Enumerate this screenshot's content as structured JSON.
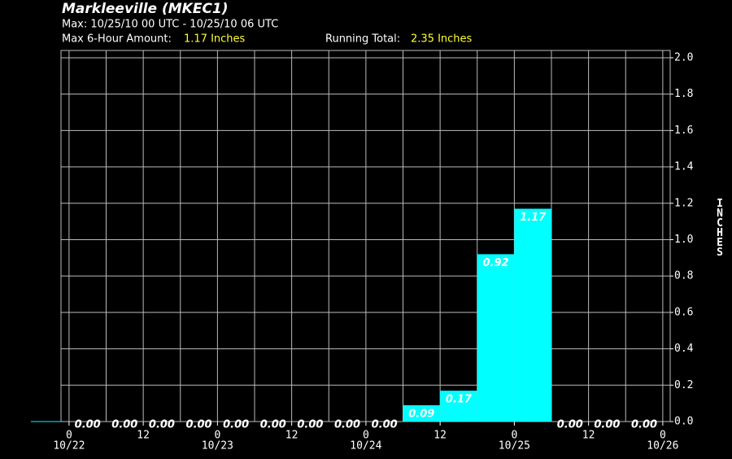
{
  "chart_data": {
    "type": "histogram",
    "title": "Markleeville (MKEC1)",
    "subtitle": "Max: 10/25/10 00 UTC - 10/25/10 06 UTC",
    "max_amount_label": "Max 6-Hour Amount:",
    "max_amount_value": "1.17 Inches",
    "running_total_label": "Running Total:",
    "running_total_value": "2.35 Inches",
    "ylabel": "INCHES",
    "color": "#00ffff",
    "bins": [
      0,
      6,
      12,
      18,
      24,
      30,
      36,
      42,
      48,
      54,
      60,
      66,
      72,
      78,
      84,
      90,
      96
    ],
    "values": [
      0,
      0,
      0,
      0,
      0,
      0,
      0,
      0,
      0,
      0.09,
      0.17,
      0.92,
      1.17,
      0,
      0,
      0
    ],
    "value_labels": [
      "0.00",
      "0.00",
      "0.00",
      "0.00",
      "0.00",
      "0.00",
      "0.00",
      "0.00",
      "0.00",
      "0.09",
      "0.17",
      "0.92",
      "1.17",
      "0.00",
      "0.00",
      "0.00"
    ],
    "xlim": [
      -1.3,
      97.2
    ],
    "xticks": [
      0,
      12,
      {
        "value": 24,
        "label": "0"
      },
      {
        "value": 36,
        "label": "12"
      },
      {
        "value": 48,
        "label": "0"
      },
      {
        "value": 60,
        "label": "12"
      },
      {
        "value": 72,
        "label": "0"
      },
      {
        "value": 84,
        "label": "12"
      },
      {
        "value": 96,
        "label": "0"
      }
    ],
    "xtick_dates": [
      {
        "value": 0,
        "label": "10/22"
      },
      {
        "value": 24,
        "label": "10/23"
      },
      {
        "value": 48,
        "label": "10/24"
      },
      {
        "value": 72,
        "label": "10/25"
      },
      {
        "value": 96,
        "label": "10/26"
      }
    ],
    "ylim": [
      0,
      2.04
    ],
    "yticks": [
      {
        "value": 0,
        "label": "0.0"
      },
      {
        "value": 0.2,
        "label": "0.2"
      },
      {
        "value": 0.4,
        "label": "0.4"
      },
      {
        "value": 0.6,
        "label": "0.6"
      },
      {
        "value": 0.8,
        "label": "0.8"
      },
      {
        "value": 1,
        "label": "1.0"
      },
      {
        "value": 1.2,
        "label": "1.2"
      },
      {
        "value": 1.4,
        "label": "1.4"
      },
      {
        "value": 1.6,
        "label": "1.6"
      },
      {
        "value": 1.8,
        "label": "1.8"
      },
      {
        "value": 2,
        "label": "2.0"
      }
    ],
    "grid": true
  }
}
